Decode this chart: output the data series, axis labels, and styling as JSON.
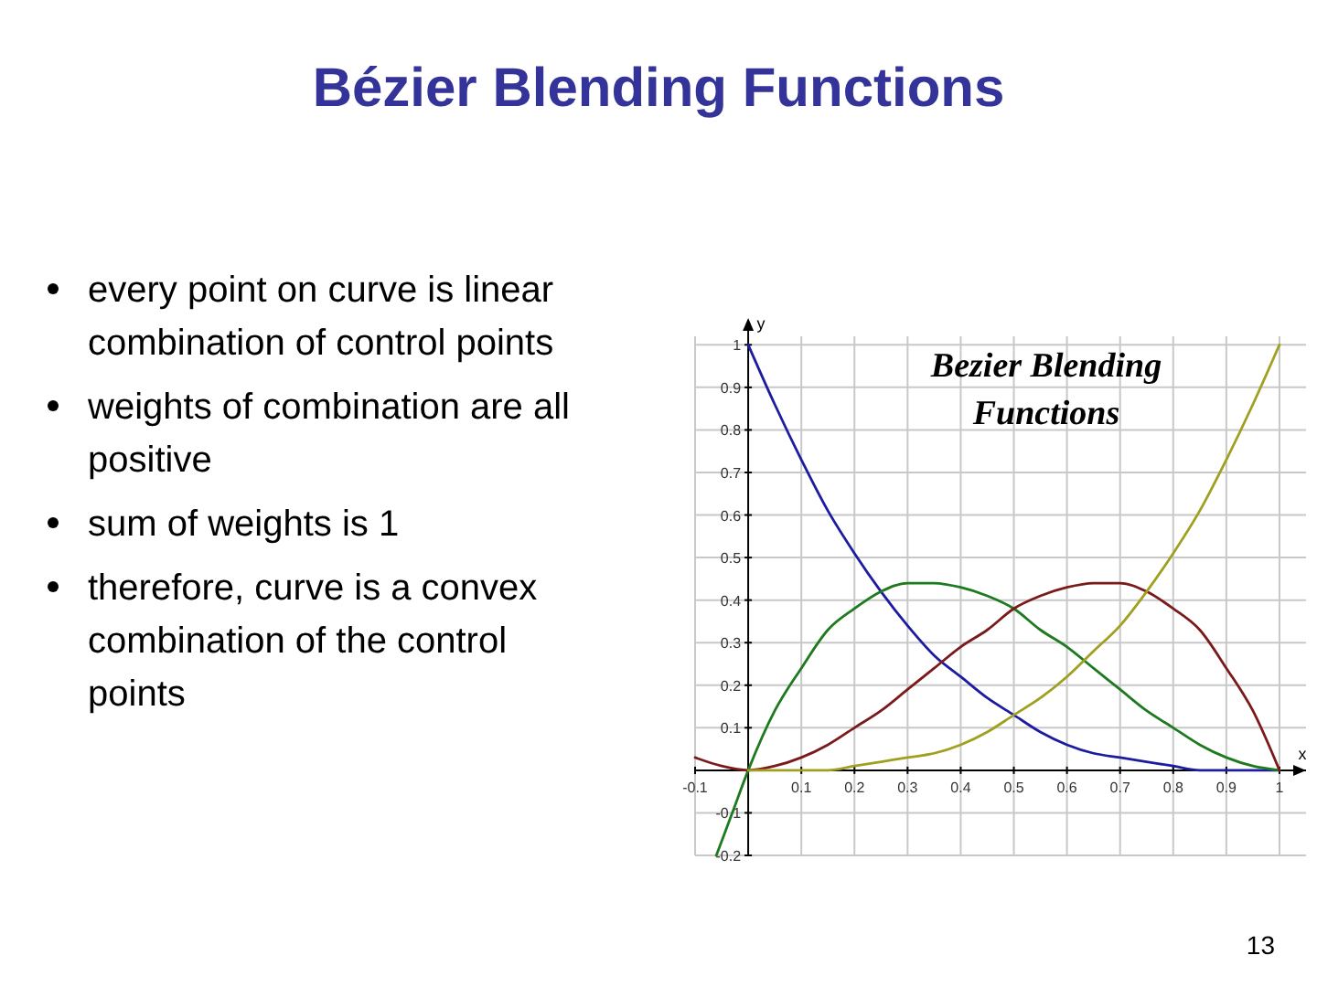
{
  "chart_data": {
    "type": "line",
    "title": "Bézier Blending Functions",
    "subtitle": "Bezier Blending Functions",
    "xlabel": "x",
    "ylabel": "y",
    "annotations": [
      "every point on curve is linear combination of control points",
      "weights of combination are all positive",
      "sum of weights is 1",
      "therefore, curve is a convex combination of the control points",
      "13"
    ],
    "xlim": [
      -0.1,
      1.05
    ],
    "ylim": [
      -0.2,
      1.02
    ],
    "xticks": [
      -0.1,
      0.1,
      0.2,
      0.3,
      0.4,
      0.5,
      0.6,
      0.7,
      0.8,
      0.9,
      1
    ],
    "yticks": [
      -0.2,
      -0.1,
      0.1,
      0.2,
      0.3,
      0.4,
      0.5,
      0.6,
      0.7,
      0.8,
      0.9,
      1
    ],
    "grid": true,
    "marker": "none",
    "line_style": "solid",
    "series": [
      {
        "color": "#1c1ca0",
        "x": [
          0,
          0.05,
          0.1,
          0.15,
          0.2,
          0.25,
          0.3,
          0.35,
          0.4,
          0.45,
          0.5,
          0.55,
          0.6,
          0.65,
          0.7,
          0.75,
          0.8,
          0.85,
          0.9,
          0.95,
          1
        ],
        "values": [
          1,
          0.86,
          0.73,
          0.61,
          0.51,
          0.42,
          0.34,
          0.27,
          0.22,
          0.17,
          0.13,
          0.09,
          0.06,
          0.04,
          0.03,
          0.02,
          0.01,
          0,
          0,
          0,
          0
        ]
      },
      {
        "color": "#1e7a1e",
        "x": [
          -0.06,
          -0.03,
          0,
          0.05,
          0.1,
          0.15,
          0.2,
          0.25,
          0.3,
          0.35,
          0.4,
          0.45,
          0.5,
          0.55,
          0.6,
          0.65,
          0.7,
          0.75,
          0.8,
          0.85,
          0.9,
          0.95,
          1
        ],
        "values": [
          -0.2,
          -0.1,
          0,
          0.14,
          0.24,
          0.33,
          0.38,
          0.42,
          0.44,
          0.44,
          0.43,
          0.41,
          0.38,
          0.33,
          0.29,
          0.24,
          0.19,
          0.14,
          0.1,
          0.06,
          0.03,
          0.01,
          0
        ]
      },
      {
        "color": "#7a1a1a",
        "x": [
          -0.1,
          -0.05,
          0,
          0.05,
          0.1,
          0.15,
          0.2,
          0.25,
          0.3,
          0.35,
          0.4,
          0.45,
          0.5,
          0.55,
          0.6,
          0.65,
          0.7,
          0.75,
          0.8,
          0.85,
          0.9,
          0.95,
          1
        ],
        "values": [
          0.03,
          0.01,
          0,
          0.01,
          0.03,
          0.06,
          0.1,
          0.14,
          0.19,
          0.24,
          0.29,
          0.33,
          0.38,
          0.41,
          0.43,
          0.44,
          0.44,
          0.42,
          0.38,
          0.33,
          0.24,
          0.14,
          0
        ]
      },
      {
        "color": "#a0a020",
        "x": [
          0,
          0.05,
          0.1,
          0.15,
          0.2,
          0.25,
          0.3,
          0.35,
          0.4,
          0.45,
          0.5,
          0.55,
          0.6,
          0.65,
          0.7,
          0.75,
          0.8,
          0.85,
          0.9,
          0.95,
          1
        ],
        "values": [
          0,
          0,
          0,
          0,
          0.01,
          0.02,
          0.03,
          0.04,
          0.06,
          0.09,
          0.13,
          0.17,
          0.22,
          0.28,
          0.34,
          0.42,
          0.51,
          0.61,
          0.73,
          0.86,
          1
        ]
      }
    ]
  }
}
